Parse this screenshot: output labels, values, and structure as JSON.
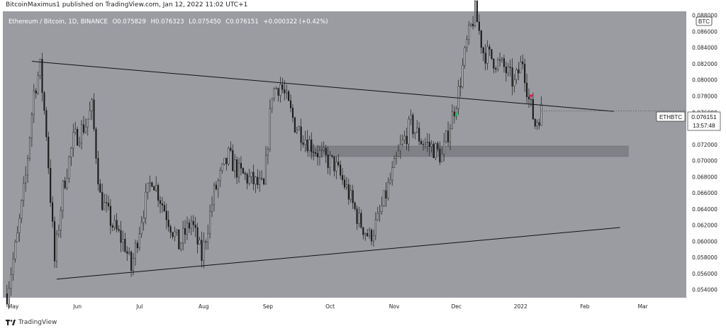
{
  "header": {
    "publisher_line": "BitcoinMaximus1 published on TradingView.com, Jan 12, 2022 11:02 UTC+1"
  },
  "legend": {
    "symbol": "Ethereum / Bitcoin, 1D, BINANCE",
    "open_label": "O",
    "open": "0.075829",
    "high_label": "H",
    "high": "0.076323",
    "low_label": "L",
    "low": "0.075450",
    "close_label": "C",
    "close": "0.076151",
    "change": "+0.000322 (+0.42%)"
  },
  "currency_badge": "BTC",
  "price_tag": {
    "ticker": "ETHBTC",
    "price": "0.076151",
    "countdown": "13:57:48"
  },
  "footer": {
    "brand": "TradingView"
  },
  "colors": {
    "plot_bg": "#9a9ca2",
    "candle": "#1a1a1a",
    "line": "#111111",
    "zone": "#7f8187",
    "green_marker": "#22c55e",
    "red_marker": "#e11d48"
  },
  "chart_data": {
    "type": "candlestick",
    "x_ticks": [
      "May",
      "Jun",
      "Jul",
      "Aug",
      "Sep",
      "Oct",
      "Nov",
      "Dec",
      "2022",
      "Feb",
      "Mar"
    ],
    "y_ticks": [
      "0.054000",
      "0.056000",
      "0.058000",
      "0.060000",
      "0.062000",
      "0.064000",
      "0.066000",
      "0.068000",
      "0.070000",
      "0.072000",
      "0.074000",
      "0.076000",
      "0.078000",
      "0.080000",
      "0.082000",
      "0.084000",
      "0.086000",
      "0.088000"
    ],
    "ylim": [
      0.053,
      0.0885
    ],
    "date_range": [
      "2021-04-26",
      "2022-03-22"
    ],
    "close_path": [
      [
        "2021-04-28",
        0.0535
      ],
      [
        "2021-05-03",
        0.0605
      ],
      [
        "2021-05-07",
        0.068
      ],
      [
        "2021-05-11",
        0.0785
      ],
      [
        "2021-05-14",
        0.0815
      ],
      [
        "2021-05-17",
        0.0735
      ],
      [
        "2021-05-21",
        0.0575
      ],
      [
        "2021-05-25",
        0.0665
      ],
      [
        "2021-05-30",
        0.0725
      ],
      [
        "2021-06-05",
        0.0745
      ],
      [
        "2021-06-08",
        0.0765
      ],
      [
        "2021-06-12",
        0.0655
      ],
      [
        "2021-06-18",
        0.062
      ],
      [
        "2021-06-24",
        0.0595
      ],
      [
        "2021-06-27",
        0.0565
      ],
      [
        "2021-07-02",
        0.063
      ],
      [
        "2021-07-07",
        0.068
      ],
      [
        "2021-07-13",
        0.064
      ],
      [
        "2021-07-20",
        0.0595
      ],
      [
        "2021-07-26",
        0.0625
      ],
      [
        "2021-07-31",
        0.058
      ],
      [
        "2021-08-06",
        0.066
      ],
      [
        "2021-08-13",
        0.0705
      ],
      [
        "2021-08-18",
        0.0685
      ],
      [
        "2021-08-24",
        0.0675
      ],
      [
        "2021-08-30",
        0.0665
      ],
      [
        "2021-09-03",
        0.0785
      ],
      [
        "2021-09-07",
        0.0795
      ],
      [
        "2021-09-14",
        0.0745
      ],
      [
        "2021-09-20",
        0.0725
      ],
      [
        "2021-09-27",
        0.0705
      ],
      [
        "2021-10-03",
        0.0695
      ],
      [
        "2021-10-09",
        0.0665
      ],
      [
        "2021-10-15",
        0.0625
      ],
      [
        "2021-10-20",
        0.0605
      ],
      [
        "2021-10-24",
        0.0625
      ],
      [
        "2021-10-30",
        0.0675
      ],
      [
        "2021-11-04",
        0.0715
      ],
      [
        "2021-11-09",
        0.0745
      ],
      [
        "2021-11-14",
        0.0725
      ],
      [
        "2021-11-20",
        0.0715
      ],
      [
        "2021-11-24",
        0.0705
      ],
      [
        "2021-11-28",
        0.0745
      ],
      [
        "2021-12-02",
        0.0785
      ],
      [
        "2021-12-06",
        0.0845
      ],
      [
        "2021-12-10",
        0.0885
      ],
      [
        "2021-12-14",
        0.0835
      ],
      [
        "2021-12-19",
        0.0825
      ],
      [
        "2021-12-24",
        0.0815
      ],
      [
        "2021-12-29",
        0.0795
      ],
      [
        "2022-01-02",
        0.0825
      ],
      [
        "2022-01-05",
        0.0775
      ],
      [
        "2022-01-08",
        0.0745
      ],
      [
        "2022-01-11",
        0.0762
      ]
    ],
    "trendlines": [
      {
        "from": [
          "2021-05-10",
          0.0823
        ],
        "to": [
          "2022-02-15",
          0.0761
        ]
      },
      {
        "from": [
          "2021-05-22",
          0.0553
        ],
        "to": [
          "2022-02-18",
          0.0617
        ]
      }
    ],
    "zone": {
      "from": "2021-09-20",
      "to": "2022-02-22",
      "low": 0.0705,
      "high": 0.0718
    },
    "markers": [
      {
        "date": "2021-12-01",
        "price": 0.0758,
        "color": "green"
      },
      {
        "date": "2022-01-06",
        "price": 0.078,
        "color": "red"
      }
    ],
    "last_price": 0.076151
  }
}
